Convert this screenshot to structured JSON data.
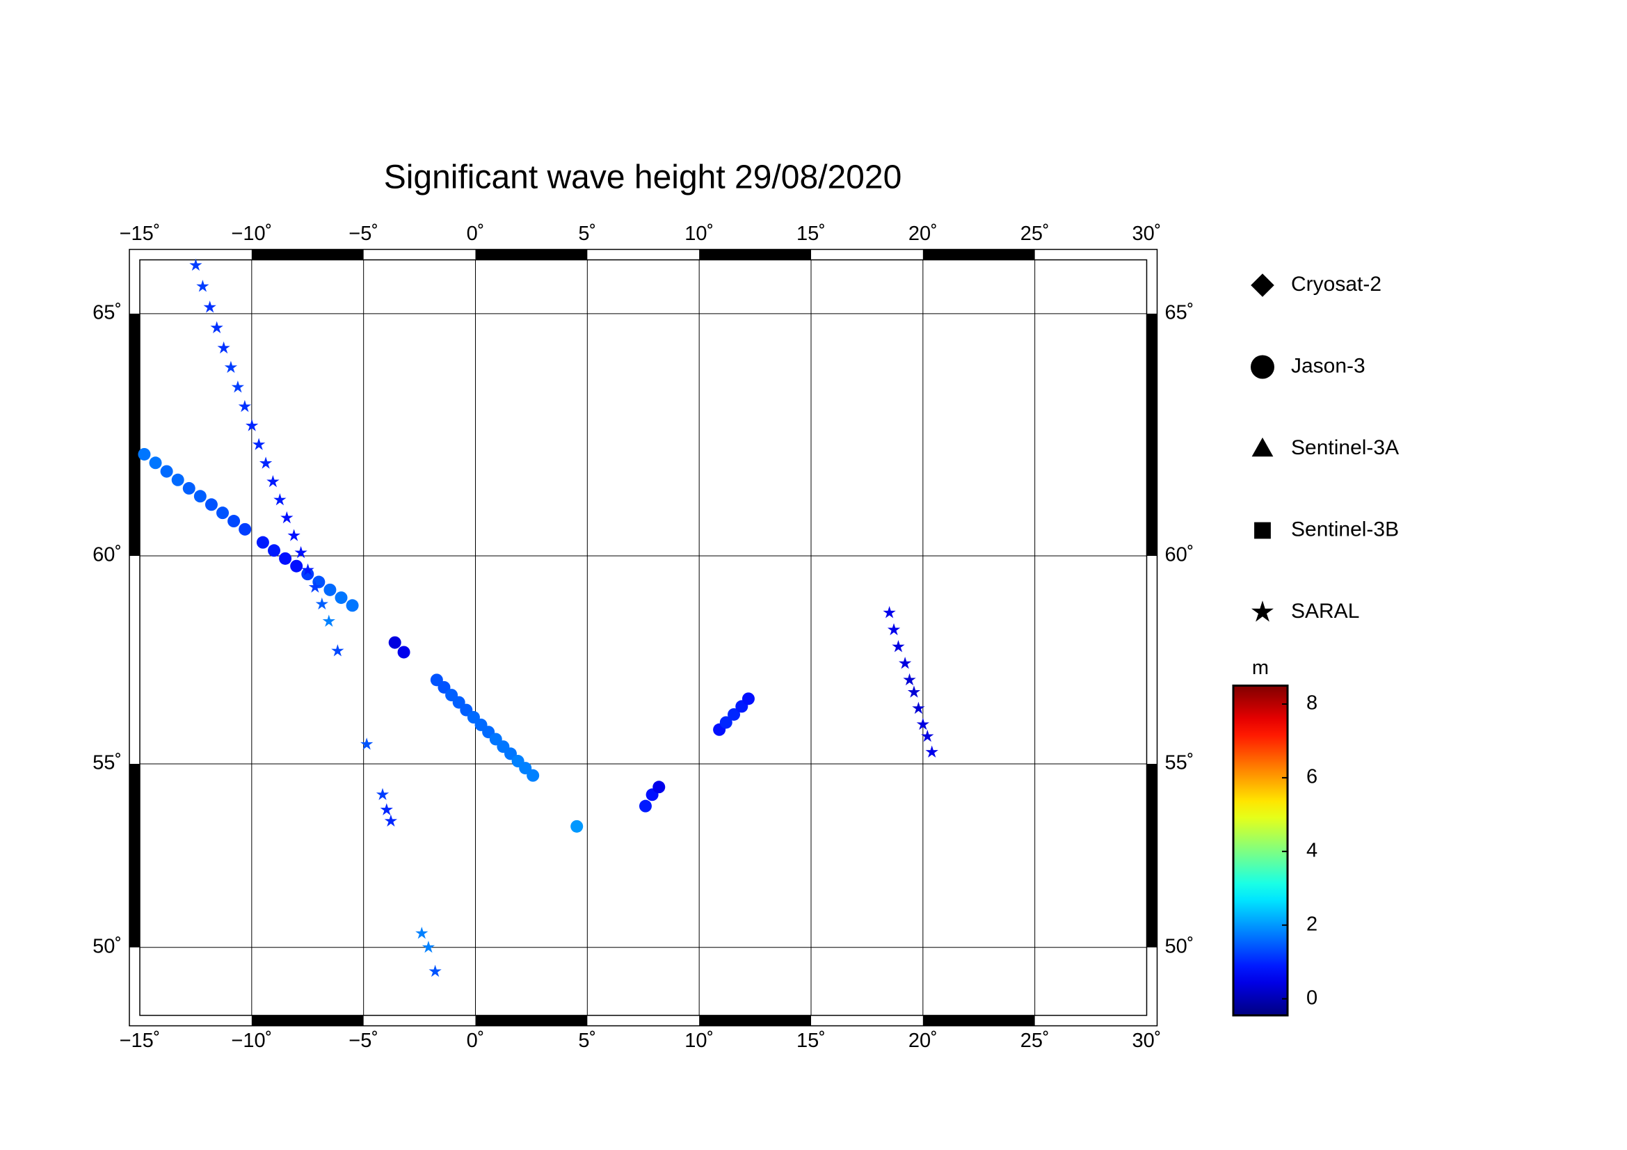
{
  "chart_data": {
    "type": "map",
    "title": "Significant wave height 29/08/2020",
    "projection": "mercator",
    "xlim": [
      -15,
      30
    ],
    "ylim": [
      48.0,
      66.0
    ],
    "xticks": [
      {
        "value": -15,
        "label": "−15˚"
      },
      {
        "value": -10,
        "label": "−10˚"
      },
      {
        "value": -5,
        "label": "−5˚"
      },
      {
        "value": 0,
        "label": "0˚"
      },
      {
        "value": 5,
        "label": "5˚"
      },
      {
        "value": 10,
        "label": "10˚"
      },
      {
        "value": 15,
        "label": "15˚"
      },
      {
        "value": 20,
        "label": "20˚"
      },
      {
        "value": 25,
        "label": "25˚"
      },
      {
        "value": 30,
        "label": "30˚"
      }
    ],
    "yticks": [
      {
        "value": 50,
        "label": "50˚"
      },
      {
        "value": 55,
        "label": "55˚"
      },
      {
        "value": 60,
        "label": "60˚"
      },
      {
        "value": 65,
        "label": "65˚"
      }
    ],
    "grid": true,
    "colormap": "jet",
    "clabel": "m",
    "clim": [
      -0.45,
      8.5
    ],
    "cticks": [
      0,
      2,
      4,
      6,
      8
    ],
    "series": [
      {
        "name": "Cryosat-2",
        "marker": "diamond",
        "x": [],
        "y": [],
        "values": []
      },
      {
        "name": "Jason-3",
        "marker": "circle",
        "x": [
          -14.8,
          -14.3,
          -13.8,
          -13.3,
          -12.8,
          -12.3,
          -11.8,
          -11.3,
          -10.8,
          -10.3,
          -9.5,
          -9.0,
          -8.5,
          -8.0,
          -7.5,
          -7.0,
          -6.5,
          -6.0,
          -5.5,
          -3.6,
          -3.2,
          -1.73,
          -1.4,
          -1.07,
          -0.74,
          -0.41,
          -0.08,
          0.25,
          0.58,
          0.91,
          1.24,
          1.57,
          1.9,
          2.23,
          2.57,
          4.53,
          7.6,
          7.9,
          8.2,
          10.9,
          11.2,
          11.55,
          11.9,
          12.2
        ],
        "y": [
          62.2,
          62.02,
          61.84,
          61.66,
          61.48,
          61.31,
          61.13,
          60.95,
          60.77,
          60.59,
          60.3,
          60.12,
          59.94,
          59.77,
          59.59,
          59.41,
          59.23,
          59.05,
          58.87,
          58.0,
          57.77,
          57.1,
          56.92,
          56.73,
          56.55,
          56.36,
          56.18,
          55.99,
          55.81,
          55.63,
          55.44,
          55.26,
          55.07,
          54.89,
          54.7,
          53.36,
          53.9,
          54.2,
          54.4,
          55.87,
          56.05,
          56.25,
          56.45,
          56.64
        ],
        "values": [
          1.7,
          1.7,
          1.6,
          1.6,
          1.5,
          1.5,
          1.4,
          1.4,
          1.3,
          1.2,
          0.9,
          0.9,
          0.8,
          0.8,
          1.2,
          1.4,
          1.6,
          1.7,
          1.7,
          0.4,
          0.5,
          1.4,
          1.4,
          1.5,
          1.5,
          1.5,
          1.6,
          1.6,
          1.6,
          1.7,
          1.7,
          1.7,
          1.8,
          1.8,
          1.8,
          2.0,
          0.9,
          0.8,
          0.5,
          0.8,
          1.0,
          1.0,
          0.9,
          0.8
        ]
      },
      {
        "name": "Sentinel-3A",
        "marker": "triangle",
        "x": [],
        "y": [],
        "values": []
      },
      {
        "name": "Sentinel-3B",
        "marker": "square",
        "x": [],
        "y": [],
        "values": []
      },
      {
        "name": "SARAL",
        "marker": "star",
        "x": [
          -12.5,
          -12.19,
          -11.87,
          -11.56,
          -11.25,
          -10.93,
          -10.62,
          -10.31,
          -9.99,
          -9.68,
          -9.37,
          -9.05,
          -8.74,
          -8.43,
          -8.11,
          -7.8,
          -7.49,
          -7.17,
          -6.86,
          -6.55,
          -6.16,
          -4.86,
          -4.15,
          -3.97,
          -3.78,
          -2.4,
          -2.1,
          -1.8,
          18.5,
          18.7,
          18.9,
          19.2,
          19.4,
          19.6,
          19.8,
          20.0,
          20.2,
          20.4
        ],
        "y": [
          65.9,
          65.51,
          65.12,
          64.73,
          64.34,
          63.96,
          63.57,
          63.18,
          62.79,
          62.4,
          62.01,
          61.62,
          61.23,
          60.84,
          60.45,
          60.07,
          59.68,
          59.29,
          58.9,
          58.5,
          57.8,
          55.5,
          54.2,
          53.8,
          53.5,
          50.4,
          50.0,
          49.3,
          58.7,
          58.3,
          57.9,
          57.5,
          57.1,
          56.8,
          56.4,
          56.0,
          55.7,
          55.3
        ],
        "values": [
          1.2,
          1.2,
          1.1,
          1.1,
          1.1,
          1.2,
          1.2,
          1.1,
          1.0,
          1.0,
          1.0,
          0.9,
          0.9,
          0.8,
          0.8,
          0.8,
          0.9,
          1.2,
          1.5,
          1.8,
          1.3,
          1.4,
          1.2,
          1.0,
          1.0,
          1.8,
          1.8,
          1.4,
          0.5,
          0.5,
          0.4,
          0.4,
          0.3,
          0.3,
          0.3,
          0.4,
          0.4,
          0.5
        ]
      }
    ]
  }
}
